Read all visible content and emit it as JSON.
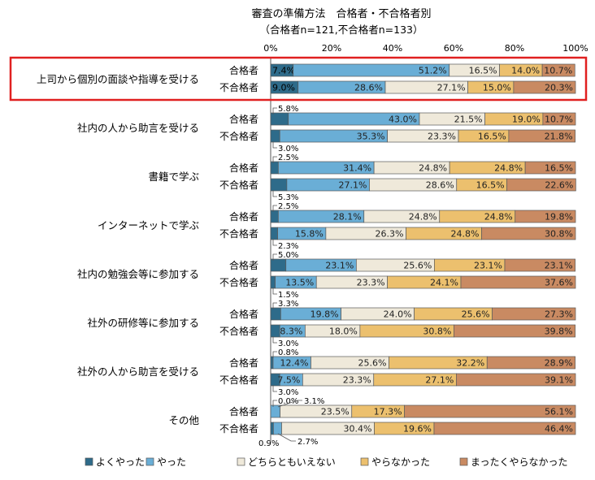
{
  "chart_data": {
    "type": "bar",
    "orientation": "horizontal-stacked-100",
    "title": "審査の準備方法　合格者・不合格者別",
    "subtitle": "（合格者n=121,不合格者n=133）",
    "xlim": [
      0,
      100
    ],
    "ticks": [
      "0%",
      "20%",
      "40%",
      "60%",
      "80%",
      "100%"
    ],
    "group_labels": [
      "合格者",
      "不合格者"
    ],
    "legend": [
      {
        "name": "よくやった",
        "color": "#2e6b8a"
      },
      {
        "name": "やった",
        "color": "#6aaed6"
      },
      {
        "name": "どちらともいえない",
        "color": "#efe9da"
      },
      {
        "name": "やらなかった",
        "color": "#ecc06e"
      },
      {
        "name": "まったくやらなかった",
        "color": "#c98a62"
      }
    ],
    "highlight_category": 0,
    "highlight_color": "#e02020",
    "categories": [
      {
        "label": "上司から個別の面談や指導を受ける",
        "rows": [
          {
            "values": [
              7.4,
              51.2,
              16.5,
              14.0,
              10.7
            ],
            "labels": [
              "7.4%",
              "51.2%",
              "16.5%",
              "14.0%",
              "10.7%"
            ],
            "outside": []
          },
          {
            "values": [
              9.0,
              28.6,
              27.1,
              15.0,
              20.3
            ],
            "labels": [
              "9.0%",
              "28.6%",
              "27.1%",
              "15.0%",
              "20.3%"
            ],
            "outside": []
          }
        ]
      },
      {
        "label": "社内の人から助言を受ける",
        "rows": [
          {
            "values": [
              5.8,
              43.0,
              21.5,
              19.0,
              10.7
            ],
            "labels": [
              "",
              "43.0%",
              "21.5%",
              "19.0%",
              "10.7%"
            ],
            "outside": [
              {
                "text": "5.8%",
                "pos": "above"
              }
            ]
          },
          {
            "values": [
              3.0,
              35.3,
              23.3,
              16.5,
              21.8
            ],
            "labels": [
              "",
              "35.3%",
              "23.3%",
              "16.5%",
              "21.8%"
            ],
            "outside": [
              {
                "text": "3.0%",
                "pos": "below"
              }
            ]
          }
        ]
      },
      {
        "label": "書籍で学ぶ",
        "rows": [
          {
            "values": [
              2.5,
              31.4,
              24.8,
              24.8,
              16.5
            ],
            "labels": [
              "",
              "31.4%",
              "24.8%",
              "24.8%",
              "16.5%"
            ],
            "outside": [
              {
                "text": "2.5%",
                "pos": "above"
              }
            ]
          },
          {
            "values": [
              5.3,
              27.1,
              28.6,
              16.5,
              22.6
            ],
            "labels": [
              "",
              "27.1%",
              "28.6%",
              "16.5%",
              "22.6%"
            ],
            "outside": [
              {
                "text": "5.3%",
                "pos": "below"
              }
            ]
          }
        ]
      },
      {
        "label": "インターネットで学ぶ",
        "rows": [
          {
            "values": [
              2.5,
              28.1,
              24.8,
              24.8,
              19.8
            ],
            "labels": [
              "",
              "28.1%",
              "24.8%",
              "24.8%",
              "19.8%"
            ],
            "outside": [
              {
                "text": "2.5%",
                "pos": "above"
              }
            ]
          },
          {
            "values": [
              2.3,
              15.8,
              26.3,
              24.8,
              30.8
            ],
            "labels": [
              "",
              "15.8%",
              "26.3%",
              "24.8%",
              "30.8%"
            ],
            "outside": [
              {
                "text": "2.3%",
                "pos": "below"
              }
            ]
          }
        ]
      },
      {
        "label": "社内の勉強会等に参加する",
        "rows": [
          {
            "values": [
              5.0,
              23.1,
              25.6,
              23.1,
              23.1
            ],
            "labels": [
              "",
              "23.1%",
              "25.6%",
              "23.1%",
              "23.1%"
            ],
            "outside": [
              {
                "text": "5.0%",
                "pos": "above"
              }
            ]
          },
          {
            "values": [
              1.5,
              13.5,
              23.3,
              24.1,
              37.6
            ],
            "labels": [
              "",
              "13.5%",
              "23.3%",
              "24.1%",
              "37.6%"
            ],
            "outside": [
              {
                "text": "1.5%",
                "pos": "below"
              }
            ]
          }
        ]
      },
      {
        "label": "社外の研修等に参加する",
        "rows": [
          {
            "values": [
              3.3,
              19.8,
              24.0,
              25.6,
              27.3
            ],
            "labels": [
              "",
              "19.8%",
              "24.0%",
              "25.6%",
              "27.3%"
            ],
            "outside": [
              {
                "text": "3.3%",
                "pos": "above"
              }
            ]
          },
          {
            "values": [
              3.0,
              8.3,
              18.0,
              30.8,
              39.8
            ],
            "labels": [
              "",
              "8.3%",
              "18.0%",
              "30.8%",
              "39.8%"
            ],
            "outside": [
              {
                "text": "3.0%",
                "pos": "below"
              }
            ]
          }
        ]
      },
      {
        "label": "社外の人から助言を受ける",
        "rows": [
          {
            "values": [
              0.8,
              12.4,
              25.6,
              32.2,
              28.9
            ],
            "labels": [
              "",
              "12.4%",
              "25.6%",
              "32.2%",
              "28.9%"
            ],
            "outside": [
              {
                "text": "0.8%",
                "pos": "above"
              }
            ]
          },
          {
            "values": [
              3.0,
              7.5,
              23.3,
              27.1,
              39.1
            ],
            "labels": [
              "",
              "7.5%",
              "23.3%",
              "27.1%",
              "39.1%"
            ],
            "outside": [
              {
                "text": "3.0%",
                "pos": "below"
              }
            ]
          }
        ]
      },
      {
        "label": "その他",
        "rows": [
          {
            "values": [
              0.0,
              3.1,
              23.5,
              17.3,
              56.1
            ],
            "labels": [
              "",
              "",
              "23.5%",
              "17.3%",
              "56.1%"
            ],
            "outside": [
              {
                "text": "0.0%",
                "pos": "above"
              },
              {
                "text": "3.1%",
                "pos": "above2"
              }
            ]
          },
          {
            "values": [
              0.9,
              2.7,
              30.4,
              19.6,
              46.4
            ],
            "labels": [
              "",
              "",
              "30.4%",
              "19.6%",
              "46.4%"
            ],
            "outside": [
              {
                "text": "0.9%",
                "pos": "belowleft"
              },
              {
                "text": "2.7%",
                "pos": "belowright"
              }
            ]
          }
        ]
      }
    ]
  }
}
